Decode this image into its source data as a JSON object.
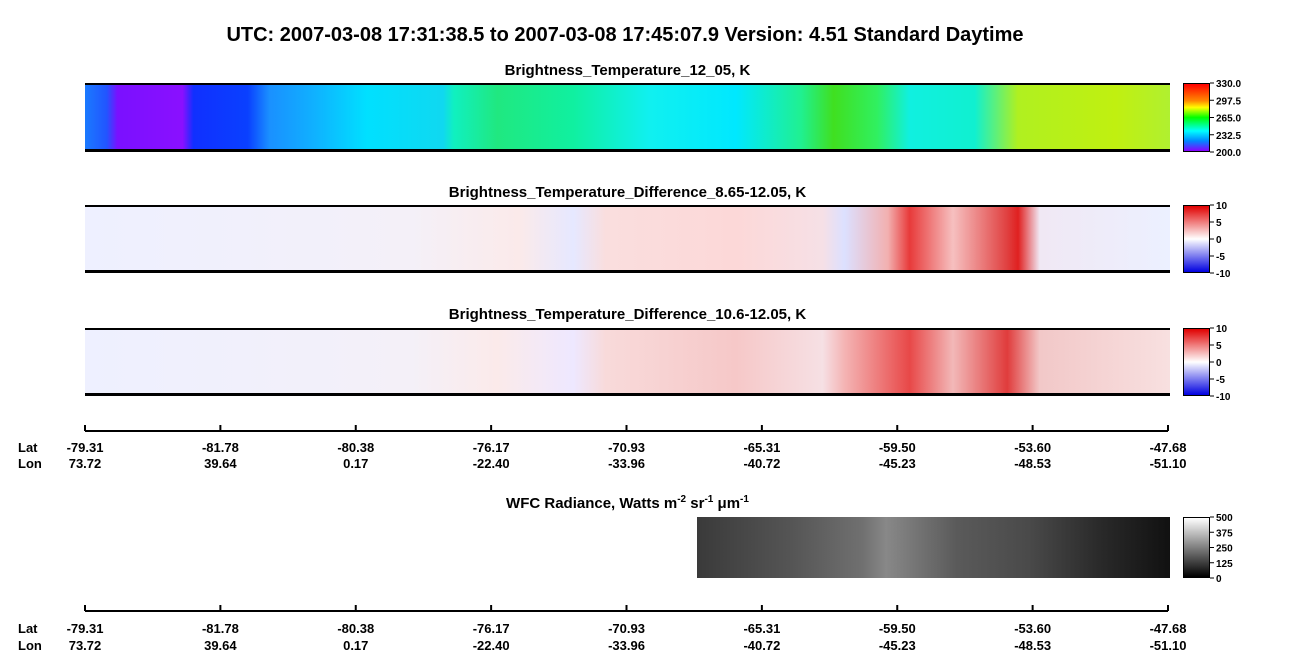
{
  "header": {
    "title": "UTC:  2007-03-08   17:31:38.5  to  2007-03-08   17:45:07.9    Version: 4.51  Standard Daytime"
  },
  "panels": [
    {
      "title": "Brightness_Temperature_12_05, K",
      "colorbar": [
        "330.0",
        "297.5",
        "265.0",
        "232.5",
        "200.0"
      ]
    },
    {
      "title": "Brightness_Temperature_Difference_8.65-12.05, K",
      "colorbar": [
        "10",
        "5",
        "0",
        "-5",
        "-10"
      ]
    },
    {
      "title": "Brightness_Temperature_Difference_10.6-12.05, K",
      "colorbar": [
        "10",
        "5",
        "0",
        "-5",
        "-10"
      ]
    },
    {
      "title_parts": [
        "WFC Radiance, Watts m",
        "-2",
        " sr",
        "-1",
        " μm",
        "-1"
      ],
      "colorbar": [
        "500",
        "375",
        "250",
        "125",
        "0"
      ]
    }
  ],
  "axis": {
    "lat_label": "Lat",
    "lon_label": "Lon",
    "lat": [
      "-79.31",
      "-81.78",
      "-80.38",
      "-76.17",
      "-70.93",
      "-65.31",
      "-59.50",
      "-53.60",
      "-47.68"
    ],
    "lon": [
      "73.72",
      "39.64",
      "0.17",
      "-22.40",
      "-33.96",
      "-40.72",
      "-45.23",
      "-48.53",
      "-51.10"
    ]
  }
}
